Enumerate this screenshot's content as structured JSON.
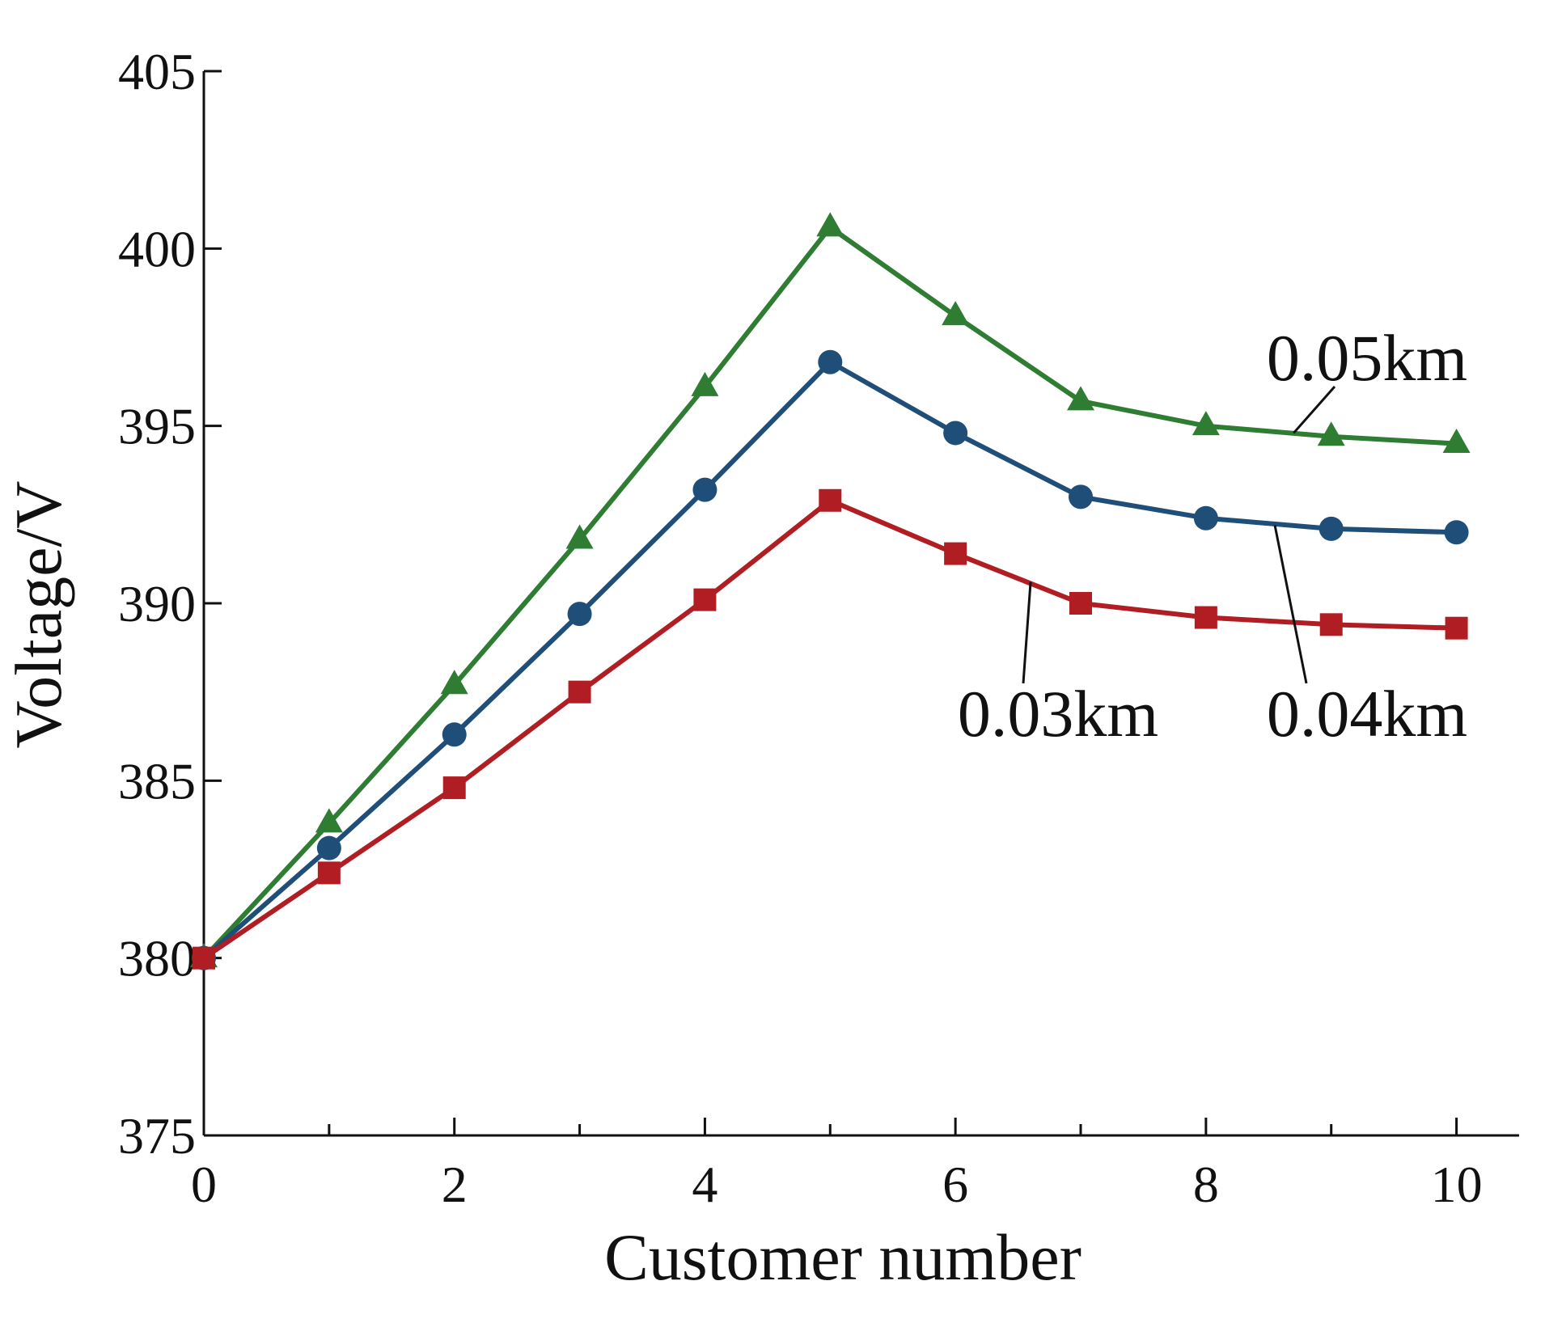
{
  "chart_data": {
    "type": "line",
    "title": "",
    "xlabel": "Customer number",
    "ylabel": "Voltage/V",
    "xlim": [
      0,
      10.5
    ],
    "ylim": [
      375,
      405
    ],
    "xticks_major": [
      0,
      2,
      4,
      6,
      8,
      10
    ],
    "xticks_minor": [
      1,
      3,
      5,
      7,
      9
    ],
    "xtick_labels": [
      "0",
      "2",
      "4",
      "6",
      "8",
      "10"
    ],
    "yticks": [
      375,
      380,
      385,
      390,
      395,
      400,
      405
    ],
    "ytick_labels": [
      "375",
      "380",
      "385",
      "390",
      "395",
      "400",
      "405"
    ],
    "grid": false,
    "legend": "none (series labeled by annotations with leader lines)",
    "x": [
      0,
      1,
      2,
      3,
      4,
      5,
      6,
      7,
      8,
      9,
      10
    ],
    "series": [
      {
        "name": "0.05km",
        "color": "#2e7d32",
        "marker": "triangle",
        "values": [
          380.0,
          383.8,
          387.7,
          391.8,
          396.1,
          400.6,
          398.1,
          395.7,
          395.0,
          394.7,
          394.5
        ]
      },
      {
        "name": "0.04km",
        "color": "#1f4e79",
        "marker": "circle",
        "values": [
          380.0,
          383.1,
          386.3,
          389.7,
          393.2,
          396.8,
          394.8,
          393.0,
          392.4,
          392.1,
          392.0
        ]
      },
      {
        "name": "0.03km",
        "color": "#b01e23",
        "marker": "square",
        "values": [
          380.0,
          382.4,
          384.8,
          387.5,
          390.1,
          392.9,
          391.4,
          390.0,
          389.6,
          389.4,
          389.3
        ]
      }
    ],
    "annotations": [
      {
        "text": "0.05km",
        "series": "0.05km",
        "point": [
          8.7,
          394.8
        ]
      },
      {
        "text": "0.04km",
        "series": "0.04km",
        "point": [
          8.55,
          392.2
        ]
      },
      {
        "text": "0.03km",
        "series": "0.03km",
        "point": [
          6.6,
          390.6
        ]
      }
    ]
  }
}
